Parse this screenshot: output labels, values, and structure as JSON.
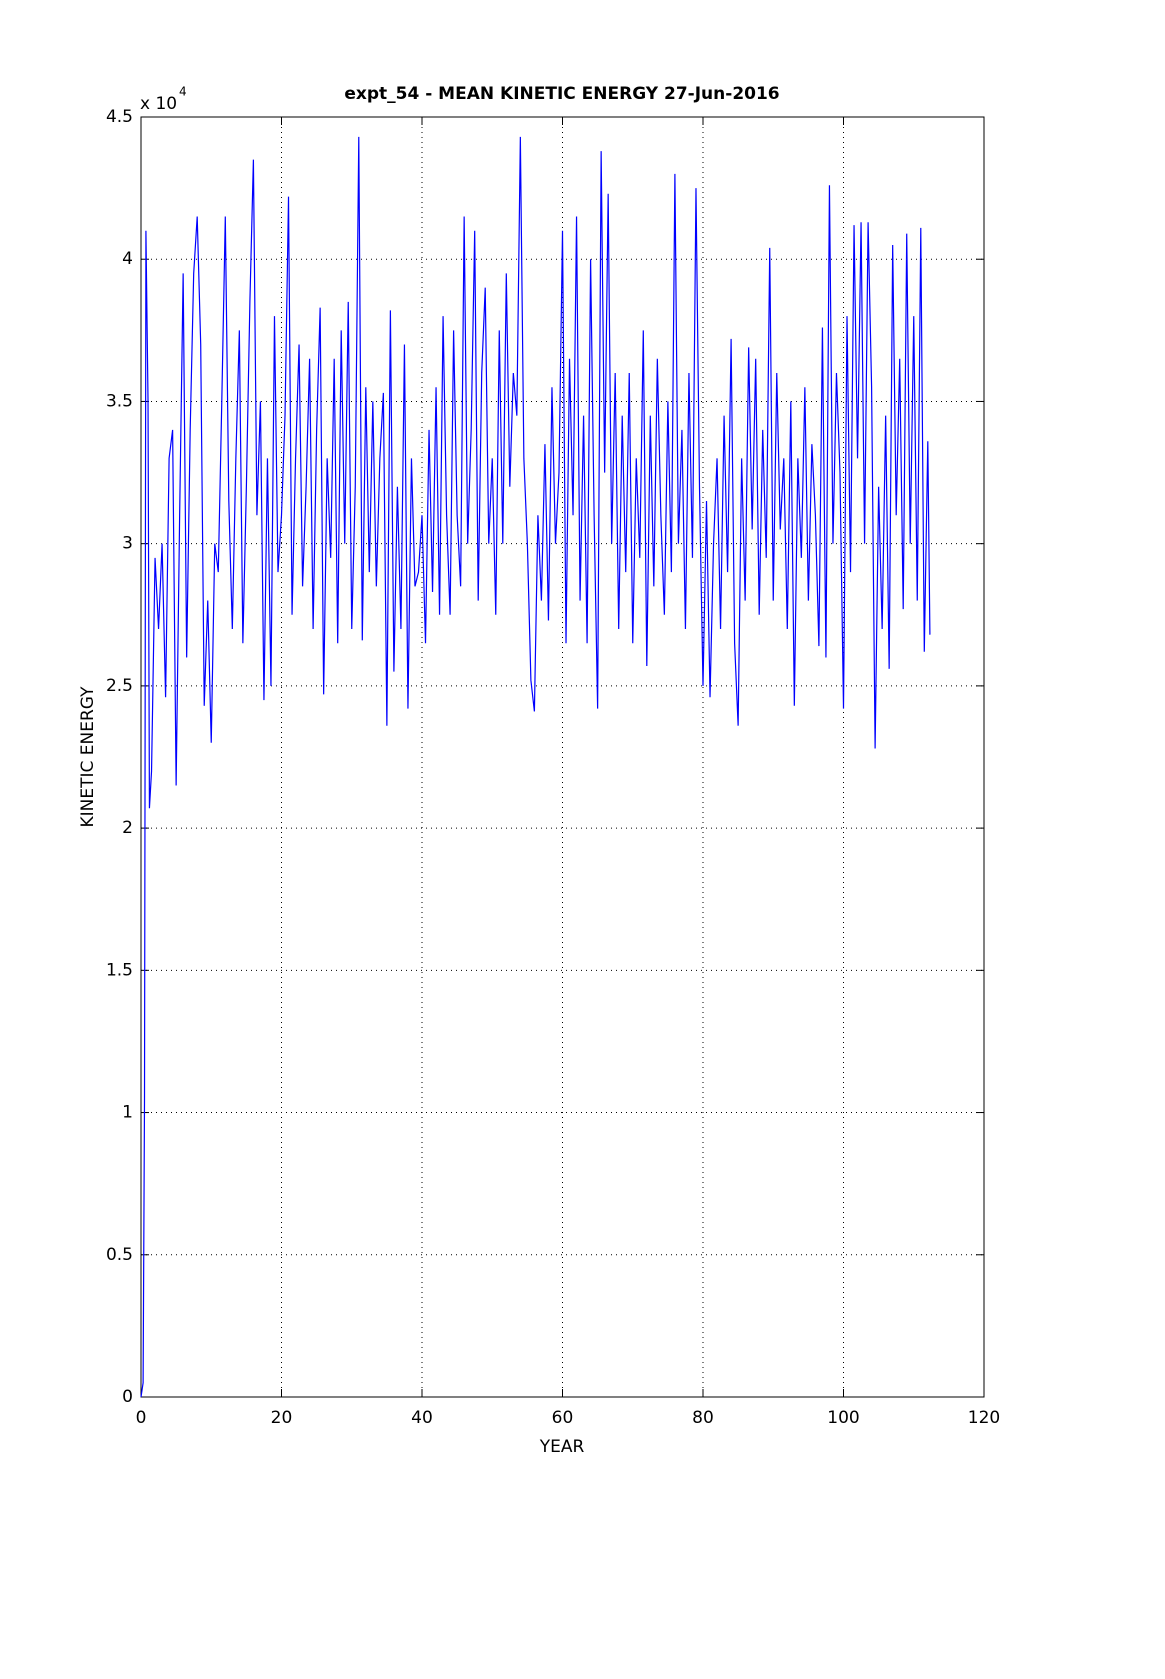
{
  "chart_data": {
    "type": "line",
    "title": "expt_54 - MEAN KINETIC ENERGY 27-Jun-2016",
    "x_label": "YEAR",
    "y_label": "KINETIC ENERGY",
    "y_multiplier": "x 10",
    "y_exponent": "4",
    "color": "#0000ff",
    "grid": true,
    "xlim": [
      0,
      120
    ],
    "xticks": [
      0,
      20,
      40,
      60,
      80,
      100,
      120
    ],
    "ylim": [
      0,
      45000
    ],
    "yticks": [
      0,
      {
        "value": 5000,
        "label": "0.5"
      },
      {
        "value": 10000,
        "label": "1"
      },
      {
        "value": 15000,
        "label": "1.5"
      },
      {
        "value": 20000,
        "label": "2"
      },
      {
        "value": 25000,
        "label": "2.5"
      },
      {
        "value": 30000,
        "label": "3"
      },
      {
        "value": 35000,
        "label": "3.5"
      },
      {
        "value": 40000,
        "label": "4"
      },
      {
        "value": 45000,
        "label": "4.5"
      }
    ],
    "x": [
      0,
      0.3,
      0.5,
      0.7,
      1,
      1.2,
      1.5,
      2,
      2.5,
      3,
      3.5,
      4,
      4.5,
      5,
      5.5,
      6,
      6.5,
      7,
      7.5,
      8,
      8.5,
      9,
      9.5,
      10,
      10.5,
      11,
      11.5,
      12,
      12.5,
      13,
      13.5,
      14,
      14.5,
      15,
      15.5,
      16,
      16.5,
      17,
      17.5,
      18,
      18.5,
      19,
      19.5,
      20,
      20.5,
      21,
      21.5,
      22,
      22.5,
      23,
      23.5,
      24,
      24.5,
      25,
      25.5,
      26,
      26.5,
      27,
      27.5,
      28,
      28.5,
      29,
      29.5,
      30,
      30.5,
      31,
      31.5,
      32,
      32.5,
      33,
      33.5,
      34,
      34.5,
      35,
      35.5,
      36,
      36.5,
      37,
      37.5,
      38,
      38.5,
      39,
      39.5,
      40,
      40.5,
      41,
      41.5,
      42,
      42.5,
      43,
      43.5,
      44,
      44.5,
      45,
      45.5,
      46,
      46.5,
      47,
      47.5,
      48,
      48.5,
      49,
      49.5,
      50,
      50.5,
      51,
      51.5,
      52,
      52.5,
      53,
      53.5,
      54,
      54.5,
      55,
      55.5,
      56,
      56.5,
      57,
      57.5,
      58,
      58.5,
      59,
      59.5,
      60,
      60.5,
      61,
      61.5,
      62,
      62.5,
      63,
      63.5,
      64,
      64.5,
      65,
      65.5,
      66,
      66.5,
      67,
      67.5,
      68,
      68.5,
      69,
      69.5,
      70,
      70.5,
      71,
      71.5,
      72,
      72.5,
      73,
      73.5,
      74,
      74.5,
      75,
      75.5,
      76,
      76.5,
      77,
      77.5,
      78,
      78.5,
      79,
      79.5,
      80,
      80.5,
      81,
      81.5,
      82,
      82.5,
      83,
      83.5,
      84,
      84.5,
      85,
      85.5,
      86,
      86.5,
      87,
      87.5,
      88,
      88.5,
      89,
      89.5,
      90,
      90.5,
      91,
      91.5,
      92,
      92.5,
      93,
      93.5,
      94,
      94.5,
      95,
      95.5,
      96,
      96.5,
      97,
      97.5,
      98,
      98.5,
      99,
      99.5,
      100,
      100.5,
      101,
      101.5,
      102,
      102.5,
      103,
      103.5,
      104,
      104.5,
      105,
      105.5,
      106,
      106.5,
      107,
      107.5,
      108,
      108.5,
      109,
      109.5,
      110,
      110.5,
      111,
      111.5,
      112,
      112.3
    ],
    "values": [
      0,
      500,
      10500,
      41000,
      35000,
      20700,
      22000,
      29500,
      27000,
      30000,
      24600,
      33000,
      34000,
      21500,
      31000,
      39500,
      26000,
      34000,
      39500,
      41500,
      37000,
      24300,
      28000,
      23000,
      30000,
      29000,
      35000,
      41500,
      31500,
      27000,
      33000,
      37500,
      26500,
      32000,
      38500,
      43500,
      31000,
      35000,
      24500,
      33000,
      25000,
      38000,
      29000,
      31000,
      34500,
      42200,
      27500,
      33000,
      37000,
      28500,
      32000,
      36500,
      27000,
      34000,
      38300,
      24700,
      33000,
      29500,
      36500,
      26500,
      37500,
      30000,
      38500,
      27000,
      32000,
      44300,
      26600,
      35500,
      29000,
      35000,
      28500,
      33000,
      35300,
      23600,
      38200,
      25500,
      32000,
      27000,
      37000,
      24200,
      33000,
      28500,
      29000,
      31000,
      26500,
      34000,
      28300,
      35500,
      27500,
      38000,
      31000,
      27500,
      37500,
      31000,
      28500,
      41500,
      30000,
      34000,
      41000,
      28000,
      36000,
      39000,
      30000,
      33000,
      27500,
      37500,
      30000,
      39500,
      32000,
      36000,
      34500,
      44300,
      33000,
      30000,
      25200,
      24100,
      31000,
      28000,
      33500,
      27300,
      35500,
      30000,
      32500,
      41000,
      26500,
      36500,
      31000,
      41500,
      28000,
      34500,
      26500,
      40000,
      31000,
      24200,
      43800,
      32500,
      42300,
      30000,
      36000,
      27000,
      34500,
      29000,
      36000,
      26500,
      33000,
      29500,
      37500,
      25700,
      34500,
      28500,
      36500,
      31000,
      27500,
      35000,
      29000,
      43000,
      30000,
      34000,
      27000,
      36000,
      29500,
      42500,
      32000,
      25000,
      31500,
      24600,
      30000,
      33000,
      27000,
      34500,
      29000,
      37200,
      26500,
      23600,
      33000,
      28000,
      36900,
      30500,
      36500,
      27500,
      34000,
      29500,
      40400,
      28000,
      36000,
      30500,
      33000,
      27000,
      35000,
      24300,
      33000,
      29500,
      35500,
      28000,
      33500,
      31000,
      26400,
      37600,
      26000,
      42600,
      30000,
      36000,
      32500,
      24200,
      38000,
      29000,
      41200,
      33000,
      41300,
      30000,
      41300,
      35500,
      22800,
      32000,
      27000,
      34500,
      25600,
      40500,
      31000,
      36500,
      27700,
      40900,
      30000,
      38000,
      28000,
      41100,
      26200,
      33600,
      26800
    ]
  }
}
